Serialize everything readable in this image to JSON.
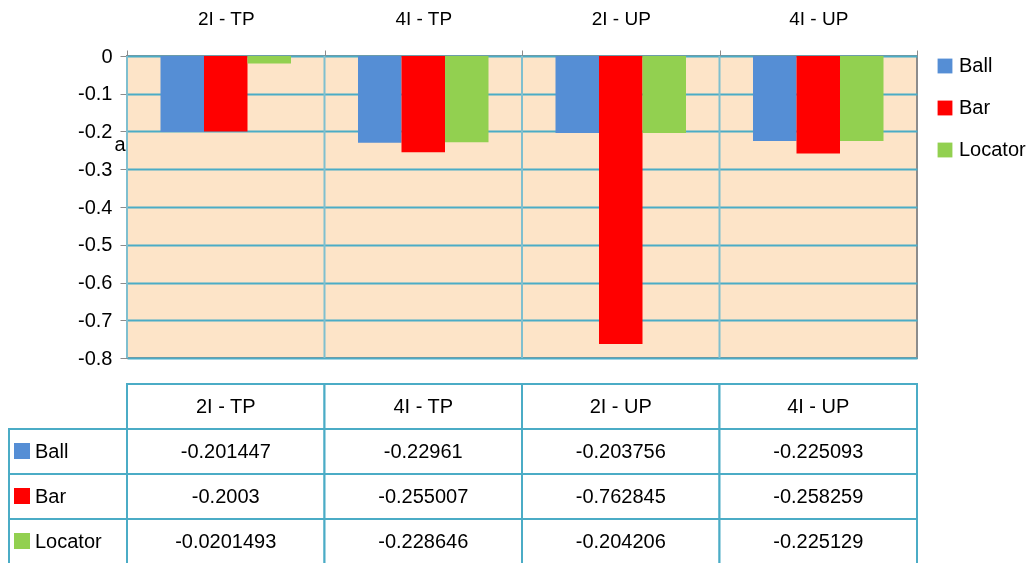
{
  "chart_data": {
    "type": "bar",
    "ylabel": "a",
    "categories": [
      "2I - TP",
      "4I - TP",
      "2I - UP",
      "4I - UP"
    ],
    "series": [
      {
        "name": "Ball",
        "color": "#558ed5",
        "values": [
          -0.201447,
          -0.22961,
          -0.203756,
          -0.225093
        ]
      },
      {
        "name": "Bar",
        "color": "#ff0000",
        "values": [
          -0.2003,
          -0.255007,
          -0.762845,
          -0.258259
        ]
      },
      {
        "name": "Locator",
        "color": "#92d050",
        "values": [
          -0.0201493,
          -0.228646,
          -0.204206,
          -0.225129
        ]
      }
    ],
    "ylim": [
      -0.8,
      0
    ],
    "yticks": [
      0,
      -0.1,
      -0.2,
      -0.3,
      -0.4,
      -0.5,
      -0.6,
      -0.7,
      -0.8
    ],
    "grid": "y",
    "legend": "right",
    "data_labels": true
  }
}
